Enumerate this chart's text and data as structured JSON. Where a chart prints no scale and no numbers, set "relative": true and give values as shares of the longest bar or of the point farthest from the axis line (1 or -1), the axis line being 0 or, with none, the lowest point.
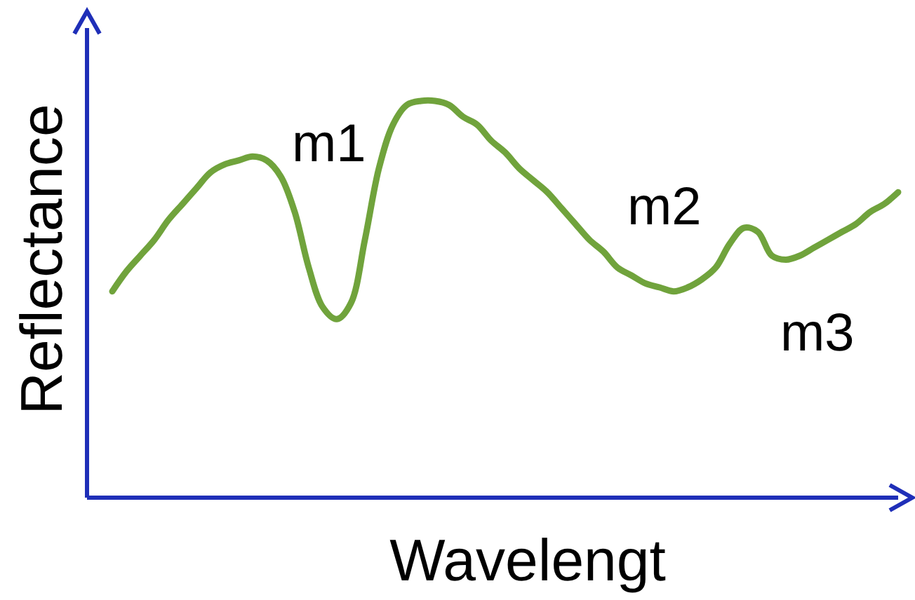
{
  "chart_data": {
    "type": "line",
    "relative": true,
    "xlabel": "Wavelengt",
    "ylabel": "Reflectance",
    "annotations": [
      "m1",
      "m2",
      "m3"
    ],
    "categories": [
      null,
      null,
      null,
      null,
      null,
      null,
      null,
      null,
      null,
      null,
      null,
      null,
      null,
      null,
      null,
      null,
      null,
      null,
      null,
      null,
      null,
      null,
      null,
      null,
      null,
      null,
      null,
      null,
      null,
      null,
      null,
      null,
      null,
      null,
      null,
      null,
      null,
      null,
      null,
      null,
      null,
      null,
      null,
      null,
      null,
      null,
      null,
      null,
      null,
      null,
      null,
      null,
      null,
      null,
      null,
      null,
      null
    ],
    "series": [
      {
        "color": "#70a33c",
        "values": [
          0.52,
          0.57,
          0.61,
          0.65,
          0.7,
          0.74,
          0.78,
          0.82,
          0.84,
          0.85,
          0.86,
          0.85,
          0.81,
          0.72,
          0.58,
          0.48,
          0.45,
          0.49,
          0.65,
          0.83,
          0.94,
          0.99,
          1,
          1,
          0.99,
          0.96,
          0.94,
          0.9,
          0.87,
          0.83,
          0.8,
          0.77,
          0.73,
          0.69,
          0.65,
          0.62,
          0.58,
          0.56,
          0.54,
          0.53,
          0.52,
          0.53,
          0.55,
          0.58,
          0.64,
          0.68,
          0.67,
          0.61,
          0.6,
          0.61,
          0.63,
          0.65,
          0.67,
          0.69,
          0.72,
          0.74,
          0.77
        ]
      }
    ],
    "marker": "none",
    "line_style": "solid"
  }
}
